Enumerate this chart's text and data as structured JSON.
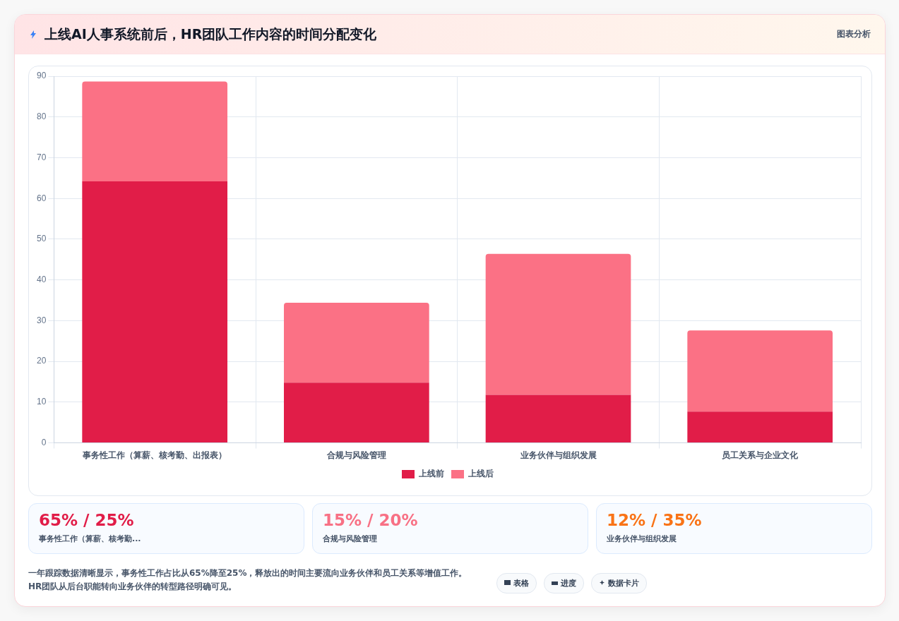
{
  "chart_data": {
    "type": "bar",
    "title": "上线AI人事系统前后，HR团队工作内容的时间分配变化",
    "categories": [
      "事务性工作（算薪、核考勤、出报表）",
      "合规与风险管理",
      "业务伙伴与组织发展",
      "员工关系与企业文化"
    ],
    "series": [
      {
        "name": "上线前",
        "color": "#e11d48",
        "values": [
          64.2,
          14.8,
          11.8,
          7.7
        ]
      },
      {
        "name": "上线后",
        "color": "#fb7185",
        "values": [
          24.5,
          19.6,
          34.6,
          19.9
        ]
      }
    ],
    "stacked": true,
    "ylim": [
      0,
      90
    ],
    "yticks": [
      0,
      10,
      20,
      30,
      40,
      50,
      60,
      70,
      80,
      90
    ],
    "grid": true,
    "legend": "bottom",
    "annotations": [
      "图表分析",
      "65% / 25%",
      "事务性工作（算薪、核考勤...",
      "15% / 20%",
      "合规与风险管理",
      "12% / 35%",
      "业务伙伴与组织发展",
      "一年跟踪数据清晰显示，事务性工作占比从65%降至25%，释放出的时间主要流向业务伙伴和员工关系等增值工作。HR团队从后台职能转向业务伙伴的转型路径明确可见。",
      "表格",
      "进度",
      "数据卡片"
    ]
  }
}
